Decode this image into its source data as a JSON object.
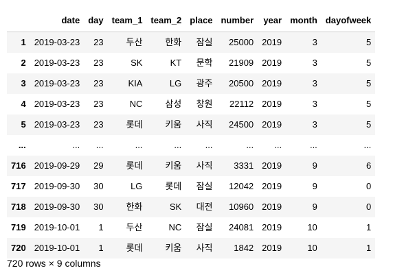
{
  "columns": [
    "date",
    "day",
    "team_1",
    "team_2",
    "place",
    "number",
    "year",
    "month",
    "dayofweek"
  ],
  "rows": [
    {
      "index": "1",
      "cells": [
        "2019-03-23",
        "23",
        "두산",
        "한화",
        "잠실",
        "25000",
        "2019",
        "3",
        "5"
      ]
    },
    {
      "index": "2",
      "cells": [
        "2019-03-23",
        "23",
        "SK",
        "KT",
        "문학",
        "21909",
        "2019",
        "3",
        "5"
      ]
    },
    {
      "index": "3",
      "cells": [
        "2019-03-23",
        "23",
        "KIA",
        "LG",
        "광주",
        "20500",
        "2019",
        "3",
        "5"
      ]
    },
    {
      "index": "4",
      "cells": [
        "2019-03-23",
        "23",
        "NC",
        "삼성",
        "창원",
        "22112",
        "2019",
        "3",
        "5"
      ]
    },
    {
      "index": "5",
      "cells": [
        "2019-03-23",
        "23",
        "롯데",
        "키움",
        "사직",
        "24500",
        "2019",
        "3",
        "5"
      ]
    },
    {
      "index": "...",
      "cells": [
        "...",
        "...",
        "...",
        "...",
        "...",
        "...",
        "...",
        "...",
        "..."
      ]
    },
    {
      "index": "716",
      "cells": [
        "2019-09-29",
        "29",
        "롯데",
        "키움",
        "사직",
        "3331",
        "2019",
        "9",
        "6"
      ]
    },
    {
      "index": "717",
      "cells": [
        "2019-09-30",
        "30",
        "LG",
        "롯데",
        "잠실",
        "12042",
        "2019",
        "9",
        "0"
      ]
    },
    {
      "index": "718",
      "cells": [
        "2019-09-30",
        "30",
        "한화",
        "SK",
        "대전",
        "10960",
        "2019",
        "9",
        "0"
      ]
    },
    {
      "index": "719",
      "cells": [
        "2019-10-01",
        "1",
        "두산",
        "NC",
        "잠실",
        "24081",
        "2019",
        "10",
        "1"
      ]
    },
    {
      "index": "720",
      "cells": [
        "2019-10-01",
        "1",
        "롯데",
        "키움",
        "사직",
        "1842",
        "2019",
        "10",
        "1"
      ]
    }
  ],
  "footer": "720 rows × 9 columns"
}
